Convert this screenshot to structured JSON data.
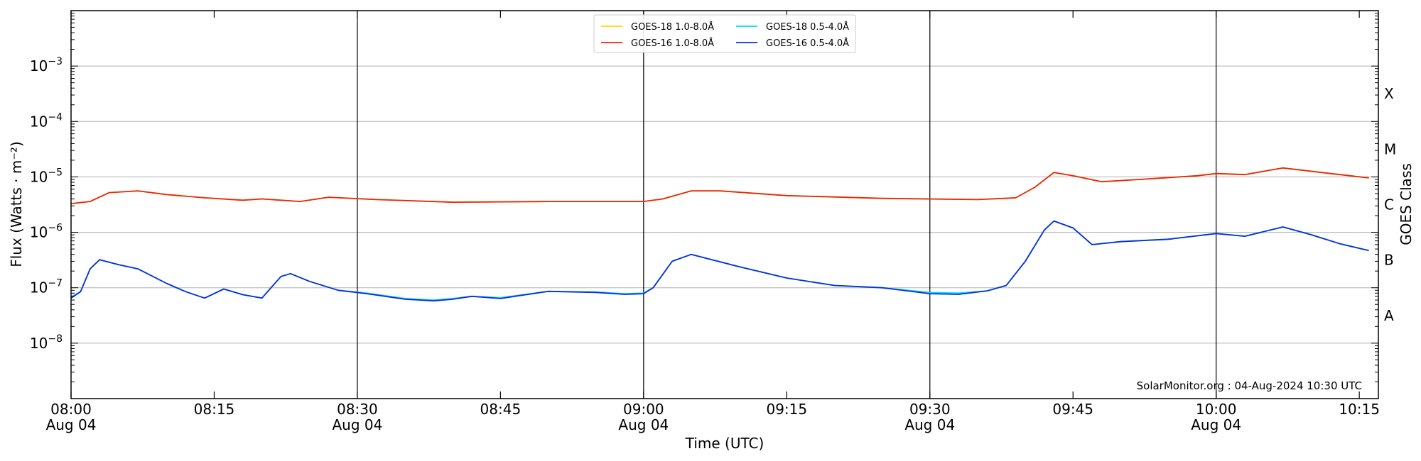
{
  "chart_data": {
    "type": "line",
    "xlabel": "Time (UTC)",
    "ylabel": "Flux (Watts · m⁻²)",
    "y2label": "GOES Class",
    "yscale": "log",
    "ylim": [
      1e-09,
      0.01
    ],
    "xlim": [
      "08:00",
      "10:17"
    ],
    "grid": true,
    "legend_position": "top-center",
    "credit": "SolarMonitor.org : 04-Aug-2024 10:30 UTC",
    "x_ticks": [
      {
        "t": "08:00",
        "line1": "08:00",
        "line2": "Aug 04"
      },
      {
        "t": "08:15",
        "line1": "08:15",
        "line2": ""
      },
      {
        "t": "08:30",
        "line1": "08:30",
        "line2": "Aug 04"
      },
      {
        "t": "08:45",
        "line1": "08:45",
        "line2": ""
      },
      {
        "t": "09:00",
        "line1": "09:00",
        "line2": "Aug 04"
      },
      {
        "t": "09:15",
        "line1": "09:15",
        "line2": ""
      },
      {
        "t": "09:30",
        "line1": "09:30",
        "line2": "Aug 04"
      },
      {
        "t": "09:45",
        "line1": "09:45",
        "line2": ""
      },
      {
        "t": "10:00",
        "line1": "10:00",
        "line2": "Aug 04"
      },
      {
        "t": "10:15",
        "line1": "10:15",
        "line2": ""
      }
    ],
    "vertical_lines": [
      "08:30",
      "09:00",
      "09:30",
      "10:00"
    ],
    "y_ticks": [
      {
        "v": 1e-08,
        "base": "10",
        "exp": "−8"
      },
      {
        "v": 1e-07,
        "base": "10",
        "exp": "−7"
      },
      {
        "v": 1e-06,
        "base": "10",
        "exp": "−6"
      },
      {
        "v": 1e-05,
        "base": "10",
        "exp": "−5"
      },
      {
        "v": 0.0001,
        "base": "10",
        "exp": "−4"
      },
      {
        "v": 0.001,
        "base": "10",
        "exp": "−3"
      }
    ],
    "goes_classes": [
      {
        "label": "A",
        "v": 3.16e-08
      },
      {
        "label": "B",
        "v": 3.16e-07
      },
      {
        "label": "C",
        "v": 3.16e-06
      },
      {
        "label": "M",
        "v": 3.16e-05
      },
      {
        "label": "X",
        "v": 0.000316
      }
    ],
    "series": [
      {
        "name": "GOES-18 1.0-8.0Å",
        "color": "#ffd700",
        "points": [
          [
            "08:00",
            3.3e-06
          ],
          [
            "08:02",
            3.6e-06
          ],
          [
            "08:04",
            5.2e-06
          ],
          [
            "08:07",
            5.6e-06
          ],
          [
            "08:10",
            4.8e-06
          ],
          [
            "08:14",
            4.2e-06
          ],
          [
            "08:18",
            3.8e-06
          ],
          [
            "08:20",
            4e-06
          ],
          [
            "08:24",
            3.6e-06
          ],
          [
            "08:27",
            4.3e-06
          ],
          [
            "08:32",
            3.9e-06
          ],
          [
            "08:40",
            3.5e-06
          ],
          [
            "08:50",
            3.6e-06
          ],
          [
            "09:00",
            3.6e-06
          ],
          [
            "09:02",
            4e-06
          ],
          [
            "09:05",
            5.6e-06
          ],
          [
            "09:08",
            5.6e-06
          ],
          [
            "09:15",
            4.6e-06
          ],
          [
            "09:25",
            4.1e-06
          ],
          [
            "09:35",
            3.9e-06
          ],
          [
            "09:39",
            4.2e-06
          ],
          [
            "09:41",
            6.5e-06
          ],
          [
            "09:43",
            1.2e-05
          ],
          [
            "09:45",
            1.05e-05
          ],
          [
            "09:48",
            8.2e-06
          ],
          [
            "09:52",
            9e-06
          ],
          [
            "09:58",
            1.05e-05
          ],
          [
            "10:00",
            1.15e-05
          ],
          [
            "10:03",
            1.1e-05
          ],
          [
            "10:07",
            1.45e-05
          ],
          [
            "10:12",
            1.15e-05
          ],
          [
            "10:16",
            9.6e-06
          ]
        ]
      },
      {
        "name": "GOES-18 0.5-4.0Å",
        "color": "#00d8ff",
        "points": [
          [
            "08:00",
            6.8e-08
          ],
          [
            "08:01",
            8.5e-08
          ],
          [
            "08:02",
            2.2e-07
          ],
          [
            "08:03",
            3.2e-07
          ],
          [
            "08:05",
            2.6e-07
          ],
          [
            "08:07",
            2.2e-07
          ],
          [
            "08:10",
            1.2e-07
          ],
          [
            "08:12",
            8.5e-08
          ],
          [
            "08:14",
            6.5e-08
          ],
          [
            "08:16",
            9.5e-08
          ],
          [
            "08:18",
            7.5e-08
          ],
          [
            "08:20",
            6.5e-08
          ],
          [
            "08:22",
            1.6e-07
          ],
          [
            "08:23",
            1.8e-07
          ],
          [
            "08:25",
            1.3e-07
          ],
          [
            "08:28",
            9e-08
          ],
          [
            "08:31",
            8e-08
          ],
          [
            "08:35",
            6.4e-08
          ],
          [
            "08:38",
            6e-08
          ],
          [
            "08:40",
            6.4e-08
          ],
          [
            "08:42",
            7e-08
          ],
          [
            "08:45",
            6.6e-08
          ],
          [
            "08:50",
            8.6e-08
          ],
          [
            "08:55",
            8.4e-08
          ],
          [
            "08:58",
            7.8e-08
          ],
          [
            "09:00",
            8e-08
          ],
          [
            "09:01",
            1e-07
          ],
          [
            "09:03",
            3e-07
          ],
          [
            "09:05",
            4e-07
          ],
          [
            "09:10",
            2.4e-07
          ],
          [
            "09:15",
            1.5e-07
          ],
          [
            "09:20",
            1.1e-07
          ],
          [
            "09:25",
            1e-07
          ],
          [
            "09:30",
            8.2e-08
          ],
          [
            "09:33",
            8e-08
          ],
          [
            "09:36",
            8.8e-08
          ],
          [
            "09:38",
            1.1e-07
          ],
          [
            "09:40",
            3e-07
          ],
          [
            "09:42",
            1.1e-06
          ],
          [
            "09:43",
            1.6e-06
          ],
          [
            "09:45",
            1.2e-06
          ],
          [
            "09:47",
            6e-07
          ],
          [
            "09:50",
            6.8e-07
          ],
          [
            "09:55",
            7.5e-07
          ],
          [
            "10:00",
            9.5e-07
          ],
          [
            "10:03",
            8.5e-07
          ],
          [
            "10:07",
            1.25e-06
          ],
          [
            "10:10",
            9e-07
          ],
          [
            "10:13",
            6.2e-07
          ],
          [
            "10:16",
            4.7e-07
          ]
        ]
      },
      {
        "name": "GOES-16 1.0-8.0Å",
        "color": "#e8260b",
        "points": [
          [
            "08:00",
            3.3e-06
          ],
          [
            "08:02",
            3.6e-06
          ],
          [
            "08:04",
            5.2e-06
          ],
          [
            "08:07",
            5.6e-06
          ],
          [
            "08:10",
            4.8e-06
          ],
          [
            "08:14",
            4.2e-06
          ],
          [
            "08:18",
            3.8e-06
          ],
          [
            "08:20",
            4e-06
          ],
          [
            "08:24",
            3.6e-06
          ],
          [
            "08:27",
            4.3e-06
          ],
          [
            "08:32",
            3.9e-06
          ],
          [
            "08:40",
            3.5e-06
          ],
          [
            "08:50",
            3.6e-06
          ],
          [
            "09:00",
            3.6e-06
          ],
          [
            "09:02",
            4e-06
          ],
          [
            "09:05",
            5.6e-06
          ],
          [
            "09:08",
            5.6e-06
          ],
          [
            "09:15",
            4.6e-06
          ],
          [
            "09:25",
            4.1e-06
          ],
          [
            "09:35",
            3.9e-06
          ],
          [
            "09:39",
            4.2e-06
          ],
          [
            "09:41",
            6.5e-06
          ],
          [
            "09:43",
            1.2e-05
          ],
          [
            "09:45",
            1.05e-05
          ],
          [
            "09:48",
            8.2e-06
          ],
          [
            "09:52",
            9e-06
          ],
          [
            "09:58",
            1.05e-05
          ],
          [
            "10:00",
            1.15e-05
          ],
          [
            "10:03",
            1.1e-05
          ],
          [
            "10:07",
            1.45e-05
          ],
          [
            "10:12",
            1.15e-05
          ],
          [
            "10:16",
            9.6e-06
          ]
        ]
      },
      {
        "name": "GOES-16 0.5-4.0Å",
        "color": "#0a2fd8",
        "points": [
          [
            "08:00",
            6.5e-08
          ],
          [
            "08:01",
            8.5e-08
          ],
          [
            "08:02",
            2.2e-07
          ],
          [
            "08:03",
            3.2e-07
          ],
          [
            "08:05",
            2.6e-07
          ],
          [
            "08:07",
            2.2e-07
          ],
          [
            "08:10",
            1.2e-07
          ],
          [
            "08:12",
            8.5e-08
          ],
          [
            "08:14",
            6.5e-08
          ],
          [
            "08:16",
            9.5e-08
          ],
          [
            "08:18",
            7.5e-08
          ],
          [
            "08:20",
            6.5e-08
          ],
          [
            "08:22",
            1.6e-07
          ],
          [
            "08:23",
            1.8e-07
          ],
          [
            "08:25",
            1.3e-07
          ],
          [
            "08:28",
            9e-08
          ],
          [
            "08:31",
            7.8e-08
          ],
          [
            "08:35",
            6.2e-08
          ],
          [
            "08:38",
            5.8e-08
          ],
          [
            "08:40",
            6.2e-08
          ],
          [
            "08:42",
            7e-08
          ],
          [
            "08:45",
            6.4e-08
          ],
          [
            "08:50",
            8.6e-08
          ],
          [
            "08:55",
            8.2e-08
          ],
          [
            "08:58",
            7.6e-08
          ],
          [
            "09:00",
            7.8e-08
          ],
          [
            "09:01",
            1e-07
          ],
          [
            "09:03",
            3e-07
          ],
          [
            "09:05",
            4e-07
          ],
          [
            "09:10",
            2.4e-07
          ],
          [
            "09:15",
            1.5e-07
          ],
          [
            "09:20",
            1.1e-07
          ],
          [
            "09:25",
            1e-07
          ],
          [
            "09:30",
            7.8e-08
          ],
          [
            "09:33",
            7.6e-08
          ],
          [
            "09:36",
            8.8e-08
          ],
          [
            "09:38",
            1.1e-07
          ],
          [
            "09:40",
            3e-07
          ],
          [
            "09:42",
            1.1e-06
          ],
          [
            "09:43",
            1.6e-06
          ],
          [
            "09:45",
            1.2e-06
          ],
          [
            "09:47",
            6e-07
          ],
          [
            "09:50",
            6.8e-07
          ],
          [
            "09:55",
            7.5e-07
          ],
          [
            "10:00",
            9.5e-07
          ],
          [
            "10:03",
            8.5e-07
          ],
          [
            "10:07",
            1.25e-06
          ],
          [
            "10:10",
            9e-07
          ],
          [
            "10:13",
            6.2e-07
          ],
          [
            "10:16",
            4.7e-07
          ]
        ]
      }
    ]
  }
}
